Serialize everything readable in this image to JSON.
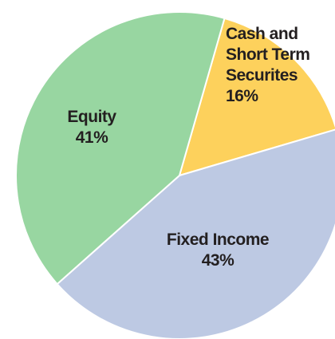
{
  "chart_data": {
    "type": "pie",
    "categories": [
      "Cash and Short Term Securites",
      "Fixed Income",
      "Equity"
    ],
    "values": [
      16,
      43,
      41
    ],
    "value_labels": [
      "16%",
      "43%",
      "41%"
    ],
    "colors": [
      "#fdd15c",
      "#bdc9e3",
      "#98d6a1"
    ]
  }
}
